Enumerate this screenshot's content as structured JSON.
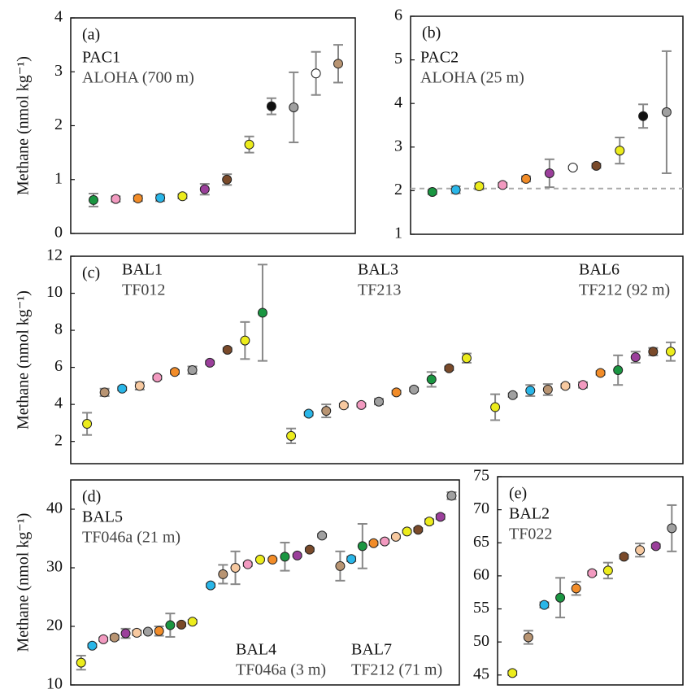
{
  "chart_data": [
    {
      "type": "scatter",
      "panel_label": "(a)",
      "ylabel": "Methane (nmol kg⁻¹)",
      "ylim": [
        0,
        4
      ],
      "yticks": [
        0,
        1,
        2,
        3,
        4
      ],
      "series": [
        {
          "name": "PAC1",
          "subtitle": "ALOHA (700 m)",
          "values": [
            0.62,
            0.64,
            0.65,
            0.66,
            0.69,
            0.82,
            1.0,
            1.65,
            2.36,
            2.34,
            2.97,
            3.15
          ],
          "errors": [
            0.12,
            0.05,
            0.05,
            0.06,
            0.04,
            0.1,
            0.1,
            0.15,
            0.15,
            0.65,
            0.4,
            0.35
          ],
          "colors": [
            "#1a9641",
            "#f29ac0",
            "#f28c28",
            "#29b6e8",
            "#ecec1c",
            "#9b3f9b",
            "#7a4a2a",
            "#ecec1c",
            "#111111",
            "#a0a0a0",
            "#ffffff",
            "#b89472"
          ]
        }
      ]
    },
    {
      "type": "scatter",
      "panel_label": "(b)",
      "ylim": [
        1,
        6
      ],
      "yticks": [
        1,
        2,
        3,
        4,
        5,
        6
      ],
      "reference_line": 2.05,
      "series": [
        {
          "name": "PAC2",
          "subtitle": "ALOHA (25 m)",
          "values": [
            1.97,
            2.02,
            2.1,
            2.13,
            2.27,
            2.4,
            2.53,
            2.57,
            2.92,
            3.71,
            3.8
          ],
          "errors": [
            0.05,
            0.08,
            0.07,
            0.05,
            0.06,
            0.32,
            0.03,
            0.05,
            0.3,
            0.27,
            1.4
          ],
          "colors": [
            "#1a9641",
            "#29b6e8",
            "#ecec1c",
            "#f29ac0",
            "#f28c28",
            "#9b3f9b",
            "#ffffff",
            "#7a4a2a",
            "#ecec1c",
            "#111111",
            "#a0a0a0"
          ]
        }
      ]
    },
    {
      "type": "scatter",
      "panel_label": "(c)",
      "ylabel": "Methane (nmol kg⁻¹)",
      "ylim": [
        0.8,
        12
      ],
      "yticks": [
        2,
        4,
        6,
        8,
        10,
        12
      ],
      "series": [
        {
          "name": "BAL1",
          "subtitle": "TF012",
          "values": [
            2.95,
            4.65,
            4.85,
            5.0,
            5.45,
            5.75,
            5.85,
            6.25,
            6.95,
            7.45,
            8.95
          ],
          "errors": [
            0.6,
            0.2,
            0.1,
            0.2,
            0.1,
            0.1,
            0.2,
            0.1,
            0.1,
            1.0,
            2.6
          ],
          "colors": [
            "#ecec1c",
            "#b89472",
            "#29b6e8",
            "#f7c9a0",
            "#f29ac0",
            "#f28c28",
            "#a0a0a0",
            "#9b3f9b",
            "#7a4a2a",
            "#ecec1c",
            "#1a9641"
          ]
        },
        {
          "name": "BAL3",
          "subtitle": "TF213",
          "values": [
            2.3,
            3.5,
            3.65,
            3.95,
            3.97,
            4.15,
            4.65,
            4.8,
            5.35,
            5.95,
            6.5
          ],
          "errors": [
            0.4,
            0.1,
            0.35,
            0.1,
            0.1,
            0.15,
            0.1,
            0.1,
            0.4,
            0.1,
            0.25
          ],
          "colors": [
            "#ecec1c",
            "#29b6e8",
            "#b89472",
            "#f7c9a0",
            "#f29ac0",
            "#a0a0a0",
            "#f28c28",
            "#a0a0a0",
            "#1a9641",
            "#7a4a2a",
            "#ecec1c"
          ]
        },
        {
          "name": "BAL6",
          "subtitle": "TF212 (92 m)",
          "values": [
            3.85,
            4.5,
            4.75,
            4.8,
            5.0,
            5.05,
            5.7,
            5.85,
            6.55,
            6.85,
            6.85
          ],
          "errors": [
            0.7,
            0.1,
            0.3,
            0.3,
            0.1,
            0.15,
            0.1,
            0.8,
            0.3,
            0.2,
            0.5
          ],
          "colors": [
            "#ecec1c",
            "#a0a0a0",
            "#29b6e8",
            "#b89472",
            "#f7c9a0",
            "#f29ac0",
            "#f28c28",
            "#1a9641",
            "#9b3f9b",
            "#7a4a2a",
            "#ecec1c"
          ]
        }
      ]
    },
    {
      "type": "scatter",
      "panel_label": "(d)",
      "ylabel": "Methane (nmol kg⁻¹)",
      "ylim": [
        10,
        45
      ],
      "yticks": [
        10,
        20,
        30,
        40
      ],
      "series": [
        {
          "name": "BAL5",
          "subtitle": "TF046a (21 m)",
          "values": [
            13.8,
            16.7,
            17.8,
            18.1,
            18.8,
            18.9,
            19.1,
            19.2,
            20.2,
            20.3,
            20.8
          ],
          "errors": [
            1.2,
            0.3,
            0.3,
            0.4,
            0.8,
            0.4,
            0.2,
            0.8,
            2.0,
            0.3,
            0.3
          ],
          "colors": [
            "#ecec1c",
            "#29b6e8",
            "#f29ac0",
            "#b89472",
            "#9b3f9b",
            "#f7c9a0",
            "#a0a0a0",
            "#f28c28",
            "#1a9641",
            "#7a4a2a",
            "#ecec1c"
          ]
        },
        {
          "name": "BAL4",
          "subtitle": "TF046a (3 m)",
          "values": [
            27.0,
            28.9,
            30.0,
            30.6,
            31.4,
            31.4,
            31.9,
            32.1,
            33.1,
            35.5
          ],
          "errors": [
            0.3,
            1.6,
            2.8,
            0.3,
            0.2,
            0.2,
            2.4,
            0.2,
            0.3,
            0.3
          ],
          "colors": [
            "#29b6e8",
            "#b89472",
            "#f7c9a0",
            "#f29ac0",
            "#ecec1c",
            "#f28c28",
            "#1a9641",
            "#9b3f9b",
            "#7a4a2a",
            "#a0a0a0"
          ]
        },
        {
          "name": "BAL7",
          "subtitle": "TF212 (71 m)",
          "values": [
            30.3,
            31.5,
            33.7,
            34.2,
            34.5,
            35.3,
            36.2,
            36.5,
            37.9,
            38.7,
            42.3
          ],
          "errors": [
            2.5,
            0.4,
            3.8,
            0.3,
            0.3,
            0.3,
            0.2,
            0.3,
            0.4,
            0.4,
            0.6
          ],
          "colors": [
            "#b89472",
            "#29b6e8",
            "#1a9641",
            "#f28c28",
            "#f29ac0",
            "#f7c9a0",
            "#ecec1c",
            "#7a4a2a",
            "#ecec1c",
            "#9b3f9b",
            "#a0a0a0"
          ]
        }
      ]
    },
    {
      "type": "scatter",
      "panel_label": "(e)",
      "ylim": [
        43.5,
        75
      ],
      "yticks": [
        45,
        50,
        55,
        60,
        65,
        70,
        75
      ],
      "series": [
        {
          "name": "BAL2",
          "subtitle": "TF022",
          "values": [
            45.3,
            50.7,
            55.6,
            56.7,
            58.1,
            60.4,
            60.8,
            62.9,
            63.9,
            64.5,
            67.2
          ],
          "errors": [
            0.3,
            1.0,
            0.4,
            3.0,
            1.0,
            0.3,
            1.2,
            0.3,
            1.0,
            0.3,
            3.5
          ],
          "colors": [
            "#ecec1c",
            "#b89472",
            "#29b6e8",
            "#1a9641",
            "#f28c28",
            "#f29ac0",
            "#ecec1c",
            "#7a4a2a",
            "#f7c9a0",
            "#9b3f9b",
            "#a0a0a0"
          ]
        }
      ]
    }
  ]
}
